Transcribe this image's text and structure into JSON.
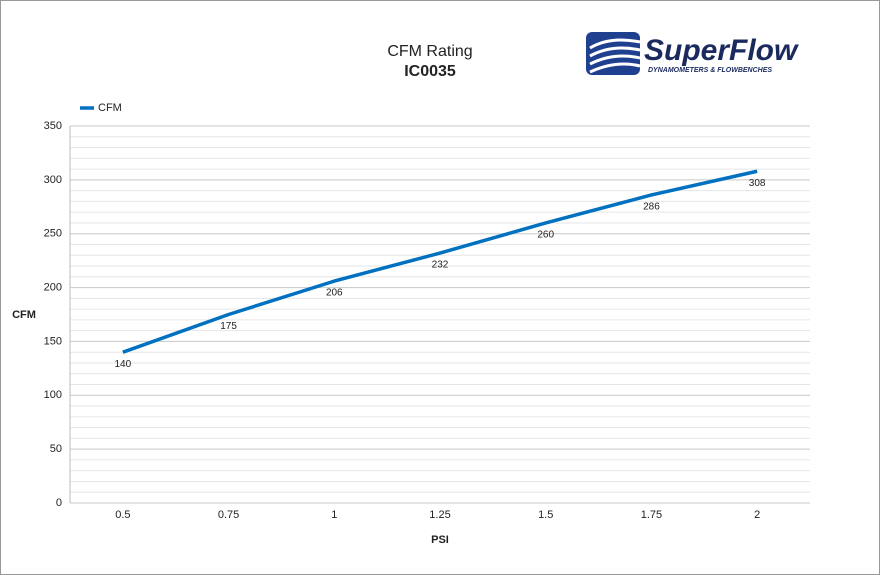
{
  "chart_data": {
    "type": "line",
    "title": "CFM Rating",
    "subtitle": "IC0035",
    "logo": {
      "name": "SuperFlow",
      "tagline": "DYNAMOMETERS & FLOWBENCHES"
    },
    "x_label": "PSI",
    "y_label": "CFM",
    "categories": [
      "0.5",
      "0.75",
      "1",
      "1.25",
      "1.5",
      "1.75",
      "2"
    ],
    "series": [
      {
        "name": "CFM",
        "color": "#0070c0",
        "values": [
          140,
          175,
          206,
          232,
          260,
          286,
          308
        ]
      }
    ],
    "ylim": [
      0,
      350
    ],
    "yticks": [
      0,
      50,
      100,
      150,
      200,
      250,
      300,
      350
    ],
    "minor_yticks": [
      10,
      20,
      30,
      40,
      60,
      70,
      80,
      90,
      110,
      120,
      130,
      140,
      160,
      170,
      180,
      190,
      210,
      220,
      230,
      240,
      260,
      270,
      280,
      290,
      310,
      320,
      330,
      340
    ],
    "grid": true,
    "legend": "top-left"
  }
}
